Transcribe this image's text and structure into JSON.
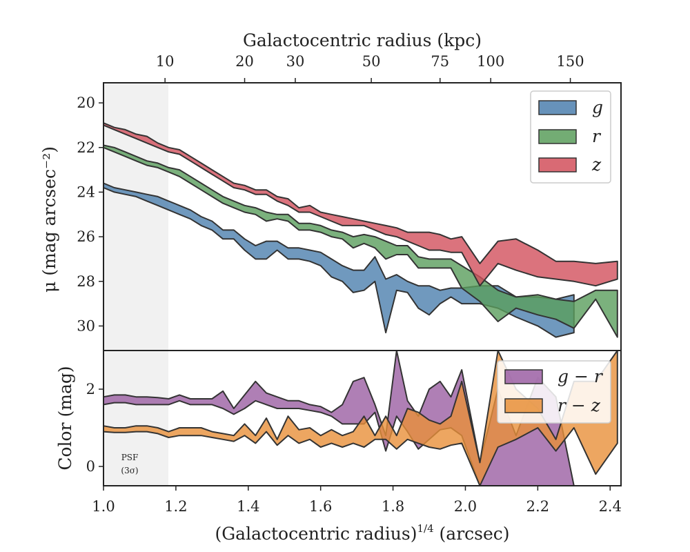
{
  "chart_data": [
    {
      "type": "area",
      "panel": "surface-brightness",
      "xlabel": "(Galactocentric radius)^1/4 (arcsec)",
      "xlabel_parts": {
        "base": "(Galactocentric radius)",
        "exponent": "1/4",
        "unit": " (arcsec)"
      },
      "ylabel": "μ (mag arcsec⁻²)",
      "top_xlabel": "Galactocentric radius (kpc)",
      "top_ticks": [
        {
          "label": "10",
          "x": 1.17
        },
        {
          "label": "20",
          "x": 1.39
        },
        {
          "label": "30",
          "x": 1.53
        },
        {
          "label": "50",
          "x": 1.74
        },
        {
          "label": "75",
          "x": 1.93
        },
        {
          "label": "100",
          "x": 2.07
        },
        {
          "label": "150",
          "x": 2.29
        }
      ],
      "xlim": [
        1.0,
        2.43
      ],
      "ylim": [
        31.1,
        19.1
      ],
      "y_inverted": true,
      "xticks": [
        "1.0",
        "1.2",
        "1.4",
        "1.6",
        "1.8",
        "2.0",
        "2.2",
        "2.4"
      ],
      "yticks": [
        "20",
        "22",
        "24",
        "26",
        "28",
        "30"
      ],
      "psf_region": [
        1.0,
        1.18
      ],
      "legend_position": "top-right",
      "series": [
        {
          "name": "g",
          "color": "#4c7fae",
          "x": [
            1.0,
            1.03,
            1.06,
            1.09,
            1.12,
            1.15,
            1.18,
            1.21,
            1.24,
            1.27,
            1.3,
            1.33,
            1.36,
            1.39,
            1.42,
            1.45,
            1.48,
            1.51,
            1.54,
            1.57,
            1.6,
            1.63,
            1.66,
            1.69,
            1.72,
            1.75,
            1.78,
            1.81,
            1.84,
            1.87,
            1.9,
            1.93,
            1.96,
            1.99,
            2.04,
            2.09,
            2.14,
            2.2,
            2.25,
            2.3
          ],
          "lower": [
            23.6,
            23.8,
            23.9,
            24.0,
            24.1,
            24.2,
            24.4,
            24.6,
            24.8,
            25.1,
            25.3,
            25.7,
            25.7,
            26.1,
            26.4,
            26.2,
            26.2,
            26.5,
            26.5,
            26.6,
            26.7,
            27.0,
            27.3,
            27.5,
            27.5,
            26.9,
            27.9,
            27.7,
            28.0,
            28.2,
            28.2,
            28.4,
            28.3,
            28.3,
            28.2,
            28.2,
            28.7,
            28.7,
            28.8,
            28.6
          ],
          "upper": [
            23.8,
            24.0,
            24.1,
            24.2,
            24.4,
            24.6,
            24.8,
            25.0,
            25.2,
            25.5,
            25.7,
            26.1,
            26.1,
            26.6,
            27.0,
            27.0,
            26.6,
            27.0,
            27.0,
            27.1,
            27.3,
            27.8,
            28.0,
            28.5,
            28.4,
            28.0,
            30.3,
            28.4,
            28.5,
            29.2,
            29.5,
            29.0,
            28.7,
            29.0,
            29.0,
            29.2,
            29.6,
            30.0,
            30.5,
            30.3
          ]
        },
        {
          "name": "r",
          "color": "#5a9e5c",
          "x": [
            1.0,
            1.03,
            1.06,
            1.09,
            1.12,
            1.15,
            1.18,
            1.21,
            1.24,
            1.27,
            1.3,
            1.33,
            1.36,
            1.39,
            1.42,
            1.45,
            1.48,
            1.51,
            1.54,
            1.57,
            1.6,
            1.63,
            1.66,
            1.69,
            1.72,
            1.75,
            1.78,
            1.81,
            1.84,
            1.87,
            1.9,
            1.93,
            1.96,
            1.99,
            2.04,
            2.09,
            2.14,
            2.2,
            2.25,
            2.3,
            2.36,
            2.42
          ],
          "lower": [
            21.9,
            22.0,
            22.2,
            22.4,
            22.6,
            22.7,
            22.9,
            23.0,
            23.3,
            23.6,
            23.9,
            24.2,
            24.4,
            24.6,
            24.7,
            24.9,
            25.0,
            25.0,
            25.4,
            25.4,
            25.5,
            25.7,
            25.8,
            26.0,
            25.9,
            26.0,
            26.2,
            26.4,
            26.4,
            26.9,
            27.0,
            27.0,
            27.0,
            27.3,
            27.8,
            28.4,
            28.7,
            28.6,
            28.8,
            28.9,
            28.4,
            28.4
          ],
          "upper": [
            22.0,
            22.2,
            22.4,
            22.6,
            22.8,
            22.9,
            23.1,
            23.3,
            23.6,
            23.9,
            24.2,
            24.5,
            24.7,
            24.9,
            25.0,
            25.3,
            25.2,
            25.3,
            25.7,
            25.7,
            25.8,
            26.0,
            26.1,
            26.5,
            26.3,
            26.5,
            27.0,
            26.8,
            26.8,
            27.4,
            27.4,
            27.4,
            27.4,
            28.3,
            28.9,
            29.8,
            29.2,
            29.5,
            29.7,
            30.1,
            28.8,
            30.5
          ]
        },
        {
          "name": "z",
          "color": "#d2505c",
          "x": [
            1.0,
            1.03,
            1.06,
            1.09,
            1.12,
            1.15,
            1.18,
            1.21,
            1.24,
            1.27,
            1.3,
            1.33,
            1.36,
            1.39,
            1.42,
            1.45,
            1.48,
            1.51,
            1.54,
            1.57,
            1.6,
            1.63,
            1.66,
            1.69,
            1.72,
            1.75,
            1.78,
            1.81,
            1.84,
            1.87,
            1.9,
            1.93,
            1.96,
            1.99,
            2.04,
            2.09,
            2.14,
            2.2,
            2.25,
            2.3,
            2.36,
            2.42
          ],
          "lower": [
            20.9,
            21.1,
            21.2,
            21.4,
            21.5,
            21.8,
            22.0,
            22.1,
            22.4,
            22.7,
            23.0,
            23.3,
            23.6,
            23.7,
            23.9,
            23.9,
            24.2,
            24.3,
            24.7,
            24.6,
            24.9,
            25.0,
            25.1,
            25.2,
            25.3,
            25.4,
            25.5,
            25.6,
            25.8,
            25.8,
            25.8,
            25.9,
            26.1,
            26.0,
            27.2,
            26.2,
            26.1,
            26.6,
            27.1,
            27.1,
            27.2,
            27.1
          ],
          "upper": [
            21.0,
            21.2,
            21.4,
            21.6,
            21.8,
            22.0,
            22.2,
            22.3,
            22.6,
            22.9,
            23.2,
            23.5,
            23.8,
            23.9,
            24.1,
            24.1,
            24.4,
            24.6,
            24.9,
            24.9,
            25.1,
            25.3,
            25.5,
            25.5,
            25.5,
            25.7,
            25.9,
            26.0,
            26.2,
            26.4,
            26.6,
            26.6,
            26.7,
            26.7,
            28.2,
            27.2,
            27.5,
            27.8,
            27.9,
            28.0,
            28.2,
            27.9
          ]
        }
      ]
    },
    {
      "type": "area",
      "panel": "color",
      "ylabel": "Color (mag)",
      "xlim": [
        1.0,
        2.43
      ],
      "ylim": [
        -0.5,
        3.0
      ],
      "yticks": [
        "0",
        "2"
      ],
      "psf_region": [
        1.0,
        1.18
      ],
      "annotation": [
        "PSF",
        "(3σ)"
      ],
      "legend_position": "top-right",
      "series": [
        {
          "name": "g − r",
          "color": "#9b5fa3",
          "x": [
            1.0,
            1.03,
            1.06,
            1.09,
            1.12,
            1.15,
            1.18,
            1.21,
            1.24,
            1.27,
            1.3,
            1.33,
            1.36,
            1.39,
            1.42,
            1.45,
            1.48,
            1.51,
            1.54,
            1.57,
            1.6,
            1.63,
            1.66,
            1.69,
            1.72,
            1.75,
            1.78,
            1.81,
            1.84,
            1.87,
            1.9,
            1.93,
            1.96,
            1.99,
            2.04,
            2.09,
            2.14,
            2.2,
            2.25,
            2.3
          ],
          "lower": [
            1.6,
            1.65,
            1.65,
            1.6,
            1.6,
            1.6,
            1.6,
            1.7,
            1.6,
            1.6,
            1.6,
            1.5,
            1.35,
            1.5,
            1.7,
            1.6,
            1.5,
            1.5,
            1.5,
            1.45,
            1.4,
            1.3,
            1.1,
            1.1,
            1.1,
            1.4,
            0.4,
            1.3,
            0.9,
            0.45,
            0.7,
            0.95,
            1.0,
            0.8,
            -0.5,
            -0.5,
            -0.5,
            -0.5,
            -0.5,
            -0.5
          ],
          "upper": [
            1.8,
            1.85,
            1.85,
            1.8,
            1.8,
            1.78,
            1.75,
            1.85,
            1.75,
            1.75,
            1.75,
            1.95,
            1.5,
            1.85,
            2.2,
            1.9,
            1.8,
            1.7,
            1.7,
            1.6,
            1.55,
            1.4,
            1.6,
            2.2,
            2.3,
            1.6,
            0.8,
            3.0,
            1.7,
            1.3,
            2.0,
            2.2,
            1.8,
            2.5,
            0.1,
            2.0,
            0.8,
            2.3,
            1.8,
            -0.5
          ]
        },
        {
          "name": "r − z",
          "color": "#e8903a",
          "x": [
            1.0,
            1.03,
            1.06,
            1.09,
            1.12,
            1.15,
            1.18,
            1.21,
            1.24,
            1.27,
            1.3,
            1.33,
            1.36,
            1.39,
            1.42,
            1.45,
            1.48,
            1.51,
            1.54,
            1.57,
            1.6,
            1.63,
            1.66,
            1.69,
            1.72,
            1.75,
            1.78,
            1.81,
            1.84,
            1.87,
            1.9,
            1.93,
            1.96,
            1.99,
            2.04,
            2.09,
            2.14,
            2.2,
            2.25,
            2.3,
            2.36,
            2.42
          ],
          "lower": [
            0.9,
            0.88,
            0.88,
            0.9,
            0.9,
            0.85,
            0.75,
            0.8,
            0.8,
            0.8,
            0.75,
            0.7,
            0.65,
            0.8,
            0.6,
            0.9,
            0.55,
            0.8,
            0.6,
            0.7,
            0.5,
            0.6,
            0.5,
            0.6,
            0.5,
            0.7,
            0.7,
            0.45,
            0.7,
            0.6,
            0.5,
            0.45,
            0.55,
            0.6,
            -0.5,
            0.5,
            0.7,
            1.0,
            0.4,
            1.0,
            -0.2,
            0.6
          ],
          "upper": [
            1.05,
            1.0,
            1.0,
            1.05,
            1.05,
            1.0,
            0.9,
            1.0,
            1.0,
            1.0,
            0.9,
            0.85,
            0.8,
            1.1,
            0.8,
            1.25,
            0.7,
            1.3,
            0.95,
            1.0,
            0.8,
            0.95,
            0.8,
            0.9,
            1.3,
            0.8,
            1.3,
            0.8,
            1.5,
            1.4,
            1.2,
            1.1,
            1.3,
            2.2,
            0.1,
            3.0,
            2.0,
            1.5,
            0.7,
            2.2,
            2.2,
            3.0
          ]
        }
      ]
    }
  ]
}
